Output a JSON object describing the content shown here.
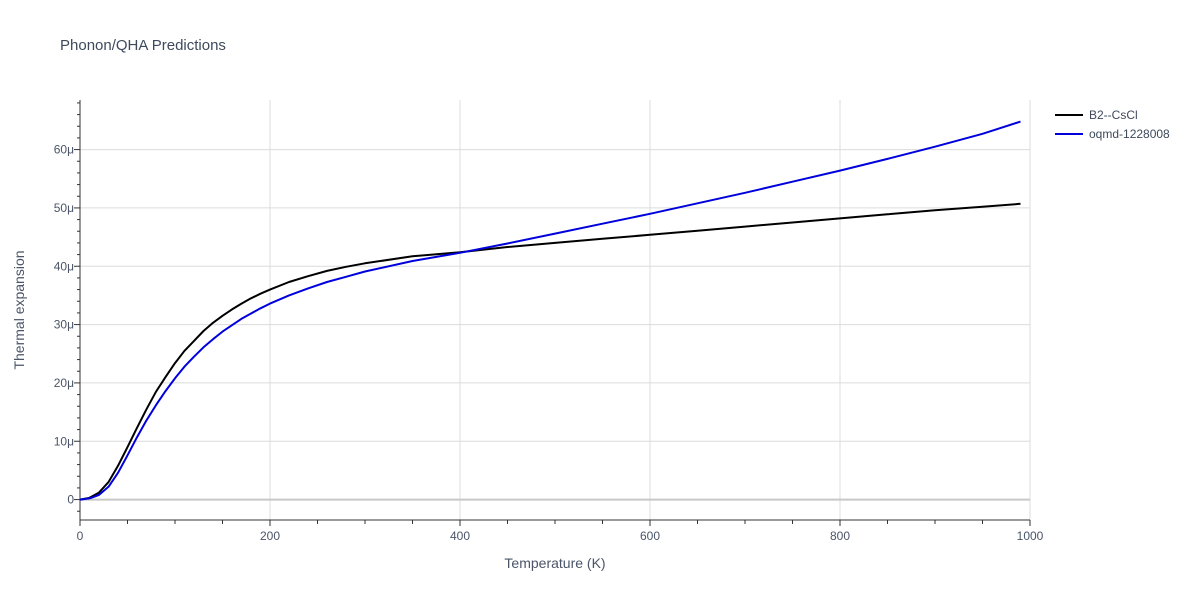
{
  "chart_data": {
    "type": "line",
    "title": "Phonon/QHA Predictions",
    "xlabel": "Temperature (K)",
    "ylabel": "Thermal expansion",
    "xlim": [
      0,
      1000
    ],
    "ylim": [
      -3.5,
      68.5
    ],
    "x_ticks": [
      0,
      200,
      400,
      600,
      800,
      1000
    ],
    "x_tick_labels": [
      "0",
      "200",
      "400",
      "600",
      "800",
      "1000"
    ],
    "y_ticks": [
      0,
      10,
      20,
      30,
      40,
      50,
      60
    ],
    "y_tick_labels": [
      "0",
      "10μ",
      "20μ",
      "30μ",
      "40μ",
      "50μ",
      "60μ"
    ],
    "grid": true,
    "legend_position": "top-right",
    "series": [
      {
        "name": "B2--CsCl",
        "color": "#000000",
        "x": [
          0,
          10,
          20,
          30,
          40,
          50,
          60,
          70,
          80,
          90,
          100,
          110,
          120,
          130,
          140,
          150,
          160,
          170,
          180,
          190,
          200,
          220,
          240,
          260,
          280,
          300,
          350,
          400,
          450,
          500,
          550,
          600,
          650,
          700,
          750,
          800,
          850,
          900,
          950,
          990
        ],
        "values": [
          0,
          0.3,
          1.2,
          3.0,
          5.8,
          9.0,
          12.3,
          15.5,
          18.5,
          21.0,
          23.4,
          25.5,
          27.2,
          28.9,
          30.3,
          31.5,
          32.6,
          33.6,
          34.5,
          35.3,
          36.0,
          37.3,
          38.3,
          39.2,
          39.9,
          40.5,
          41.7,
          42.4,
          43.3,
          44.0,
          44.7,
          45.4,
          46.1,
          46.8,
          47.5,
          48.2,
          48.9,
          49.6,
          50.2,
          50.7
        ]
      },
      {
        "name": "oqmd-1228008",
        "color": "#0000dd",
        "x": [
          0,
          10,
          20,
          30,
          40,
          50,
          60,
          70,
          80,
          90,
          100,
          110,
          120,
          130,
          140,
          150,
          160,
          170,
          180,
          190,
          200,
          220,
          240,
          260,
          280,
          300,
          350,
          400,
          450,
          500,
          550,
          600,
          650,
          700,
          750,
          800,
          850,
          900,
          950,
          990
        ],
        "values": [
          0,
          0.2,
          0.8,
          2.2,
          4.6,
          7.6,
          10.7,
          13.6,
          16.2,
          18.6,
          20.8,
          22.8,
          24.5,
          26.1,
          27.5,
          28.8,
          29.9,
          31.0,
          31.9,
          32.8,
          33.6,
          35.0,
          36.2,
          37.3,
          38.2,
          39.1,
          40.9,
          42.3,
          43.9,
          45.6,
          47.3,
          49.0,
          50.8,
          52.6,
          54.5,
          56.4,
          58.4,
          60.5,
          62.7,
          64.8
        ]
      }
    ]
  }
}
